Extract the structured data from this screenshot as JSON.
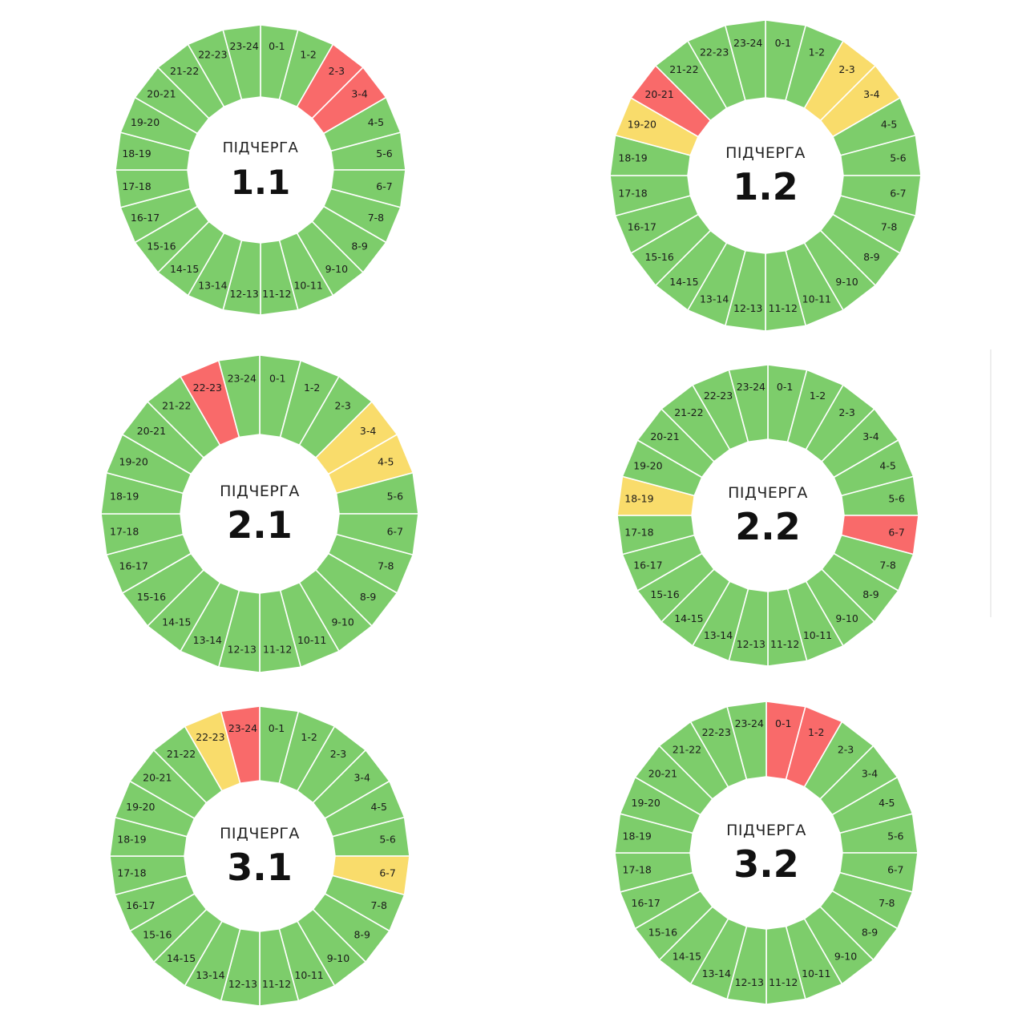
{
  "colors": {
    "on": "#7dcd6b",
    "off": "#f96a6a",
    "maybe": "#f9dc6b",
    "separator": "#ffffff"
  },
  "chart_data": [
    {
      "type": "pie",
      "title": "ПІДЧЕРГА",
      "number": "1.1",
      "categories": [
        "0-1",
        "1-2",
        "2-3",
        "3-4",
        "4-5",
        "5-6",
        "6-7",
        "7-8",
        "8-9",
        "9-10",
        "10-11",
        "11-12",
        "12-13",
        "13-14",
        "14-15",
        "15-16",
        "16-17",
        "17-18",
        "18-19",
        "19-20",
        "20-21",
        "21-22",
        "22-23",
        "23-24"
      ],
      "status": [
        "on",
        "on",
        "off",
        "off",
        "on",
        "on",
        "on",
        "on",
        "on",
        "on",
        "on",
        "on",
        "on",
        "on",
        "on",
        "on",
        "on",
        "on",
        "on",
        "on",
        "on",
        "on",
        "on",
        "on"
      ]
    },
    {
      "type": "pie",
      "title": "ПІДЧЕРГА",
      "number": "1.2",
      "categories": [
        "0-1",
        "1-2",
        "2-3",
        "3-4",
        "4-5",
        "5-6",
        "6-7",
        "7-8",
        "8-9",
        "9-10",
        "10-11",
        "11-12",
        "12-13",
        "13-14",
        "14-15",
        "15-16",
        "16-17",
        "17-18",
        "18-19",
        "19-20",
        "20-21",
        "21-22",
        "22-23",
        "23-24"
      ],
      "status": [
        "on",
        "on",
        "maybe",
        "maybe",
        "on",
        "on",
        "on",
        "on",
        "on",
        "on",
        "on",
        "on",
        "on",
        "on",
        "on",
        "on",
        "on",
        "on",
        "on",
        "maybe",
        "off",
        "on",
        "on",
        "on"
      ]
    },
    {
      "type": "pie",
      "title": "ПІДЧЕРГА",
      "number": "2.1",
      "categories": [
        "0-1",
        "1-2",
        "2-3",
        "3-4",
        "4-5",
        "5-6",
        "6-7",
        "7-8",
        "8-9",
        "9-10",
        "10-11",
        "11-12",
        "12-13",
        "13-14",
        "14-15",
        "15-16",
        "16-17",
        "17-18",
        "18-19",
        "19-20",
        "20-21",
        "21-22",
        "22-23",
        "23-24"
      ],
      "status": [
        "on",
        "on",
        "on",
        "maybe",
        "maybe",
        "on",
        "on",
        "on",
        "on",
        "on",
        "on",
        "on",
        "on",
        "on",
        "on",
        "on",
        "on",
        "on",
        "on",
        "on",
        "on",
        "on",
        "off",
        "on"
      ]
    },
    {
      "type": "pie",
      "title": "ПІДЧЕРГА",
      "number": "2.2",
      "categories": [
        "0-1",
        "1-2",
        "2-3",
        "3-4",
        "4-5",
        "5-6",
        "6-7",
        "7-8",
        "8-9",
        "9-10",
        "10-11",
        "11-12",
        "12-13",
        "13-14",
        "14-15",
        "15-16",
        "16-17",
        "17-18",
        "18-19",
        "19-20",
        "20-21",
        "21-22",
        "22-23",
        "23-24"
      ],
      "status": [
        "on",
        "on",
        "on",
        "on",
        "on",
        "on",
        "off",
        "on",
        "on",
        "on",
        "on",
        "on",
        "on",
        "on",
        "on",
        "on",
        "on",
        "on",
        "maybe",
        "on",
        "on",
        "on",
        "on",
        "on"
      ]
    },
    {
      "type": "pie",
      "title": "ПІДЧЕРГА",
      "number": "3.1",
      "categories": [
        "0-1",
        "1-2",
        "2-3",
        "3-4",
        "4-5",
        "5-6",
        "6-7",
        "7-8",
        "8-9",
        "9-10",
        "10-11",
        "11-12",
        "12-13",
        "13-14",
        "14-15",
        "15-16",
        "16-17",
        "17-18",
        "18-19",
        "19-20",
        "20-21",
        "21-22",
        "22-23",
        "23-24"
      ],
      "status": [
        "on",
        "on",
        "on",
        "on",
        "on",
        "on",
        "maybe",
        "on",
        "on",
        "on",
        "on",
        "on",
        "on",
        "on",
        "on",
        "on",
        "on",
        "on",
        "on",
        "on",
        "on",
        "on",
        "maybe",
        "off"
      ]
    },
    {
      "type": "pie",
      "title": "ПІДЧЕРГА",
      "number": "3.2",
      "categories": [
        "0-1",
        "1-2",
        "2-3",
        "3-4",
        "4-5",
        "5-6",
        "6-7",
        "7-8",
        "8-9",
        "9-10",
        "10-11",
        "11-12",
        "12-13",
        "13-14",
        "14-15",
        "15-16",
        "16-17",
        "17-18",
        "18-19",
        "19-20",
        "20-21",
        "21-22",
        "22-23",
        "23-24"
      ],
      "status": [
        "off",
        "off",
        "on",
        "on",
        "on",
        "on",
        "on",
        "on",
        "on",
        "on",
        "on",
        "on",
        "on",
        "on",
        "on",
        "on",
        "on",
        "on",
        "on",
        "on",
        "on",
        "on",
        "on",
        "on"
      ]
    }
  ]
}
